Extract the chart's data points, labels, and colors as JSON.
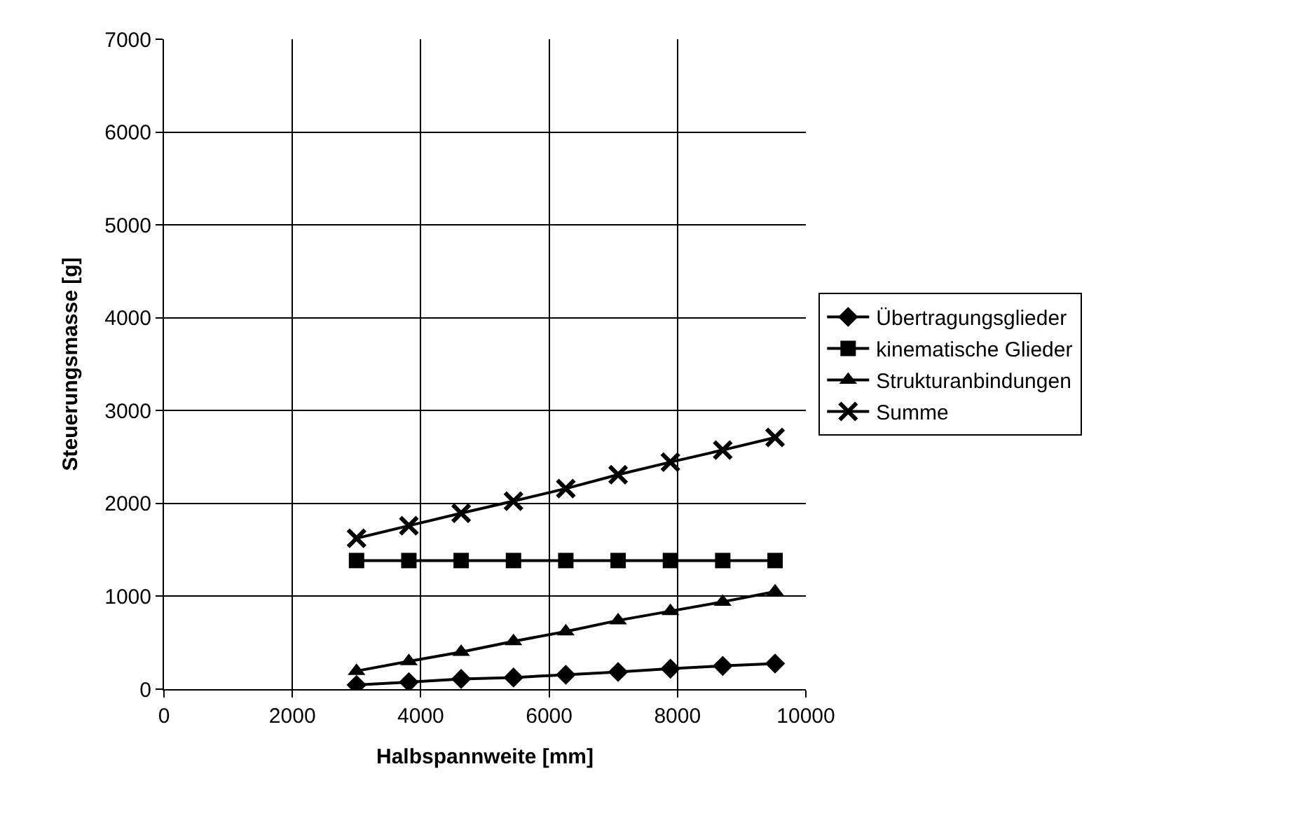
{
  "chart_data": {
    "type": "line",
    "xlabel": "Halbspannweite [mm]",
    "ylabel": "Steuerungsmasse [g]",
    "x": [
      3000,
      3815,
      4630,
      5445,
      6260,
      7075,
      7890,
      8705,
      9520
    ],
    "series": [
      {
        "name": "Übertragungsglieder",
        "color": "#000000",
        "marker": "diamond",
        "values": [
          45,
          75,
          110,
          125,
          155,
          185,
          220,
          250,
          275
        ]
      },
      {
        "name": "kinematische Glieder",
        "color": "#000000",
        "marker": "square",
        "values": [
          1385,
          1385,
          1385,
          1385,
          1385,
          1385,
          1385,
          1385,
          1385
        ]
      },
      {
        "name": "Strukturanbindungen",
        "color": "#000000",
        "marker": "triangle",
        "values": [
          195,
          300,
          400,
          515,
          620,
          740,
          840,
          940,
          1050
        ]
      },
      {
        "name": "Summe",
        "color": "#000000",
        "marker": "cross",
        "values": [
          1625,
          1760,
          1895,
          2025,
          2160,
          2310,
          2445,
          2575,
          2710
        ]
      }
    ],
    "xlim": [
      0,
      10000
    ],
    "xticks": [
      0,
      2000,
      4000,
      6000,
      8000,
      10000
    ],
    "ylim": [
      0,
      7000
    ],
    "yticks": [
      0,
      1000,
      2000,
      3000,
      4000,
      5000,
      6000,
      7000
    ],
    "grid": true,
    "legend": "right",
    "line_style": "solid"
  }
}
